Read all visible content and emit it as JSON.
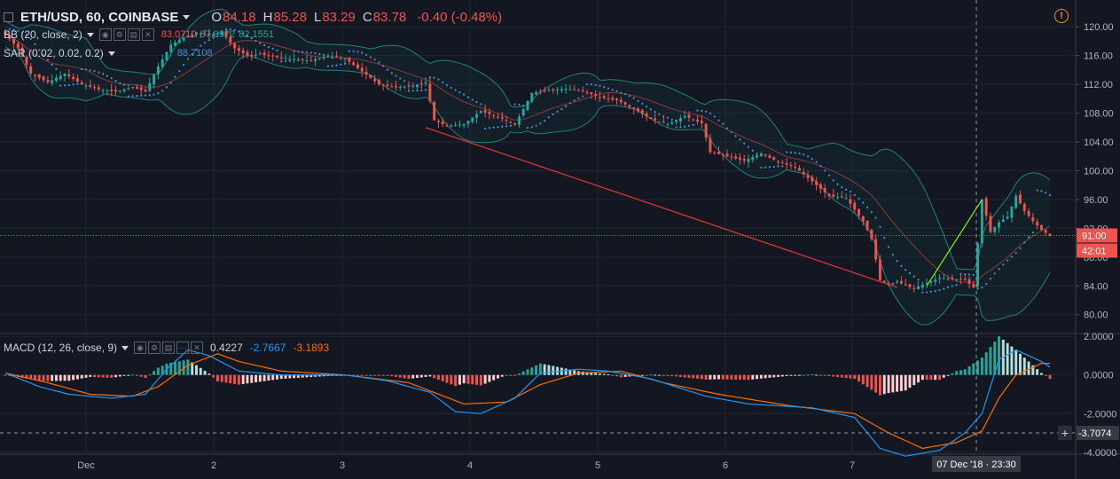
{
  "header": {
    "symbol": "ETH/USD, 60, COINBASE",
    "open_label": "O",
    "open": "84.18",
    "high_label": "H",
    "high": "85.28",
    "low_label": "L",
    "low": "83.29",
    "close_label": "C",
    "close": "83.78",
    "change": "-0.40 (-0.48%)",
    "alert_icon": "warning-icon"
  },
  "indicators": {
    "bb": {
      "name": "BB (20, close, 2)",
      "v1": "83.0710",
      "v2": "87.9972",
      "v3": "82.1551"
    },
    "sar": {
      "name": "SAR (0.02, 0.02, 0.2)",
      "v1": "88.7108"
    },
    "macd": {
      "name": "MACD (12, 26, close, 9)",
      "hist": "0.4227",
      "macd": "-2.7667",
      "signal": "-3.1893"
    }
  },
  "price_axis": {
    "ticks": [
      "120.00",
      "116.00",
      "112.00",
      "108.00",
      "104.00",
      "100.00",
      "96.00",
      "92.00",
      "88.00",
      "84.00",
      "80.00"
    ],
    "last_price_label": "91.00",
    "countdown_label": "42:01"
  },
  "macd_axis": {
    "ticks": [
      "2.0000",
      "0.0000",
      "-2.0000",
      "-4.0000"
    ],
    "crosshair_label": "-3.7074"
  },
  "time_axis": {
    "ticks": [
      "Dec",
      "2",
      "3",
      "4",
      "5",
      "6",
      "7"
    ],
    "crosshair_label": "07 Dec '18 · 23:30"
  },
  "colors": {
    "background": "#131722",
    "up": "#26a69a",
    "down": "#ef5350",
    "bb_band": "#26a69a",
    "bb_basis": "#8d3a3a",
    "sar": "#4a90d9",
    "macd_line": "#2196f3",
    "signal_line": "#ff6d00",
    "hist_up_strong": "#26a69a",
    "hist_up_weak": "#b2dfdb",
    "hist_down_strong": "#ef5350",
    "hist_down_weak": "#ffcdd2",
    "trendline_down": "#e53935",
    "trendline_up": "#76ff03"
  },
  "chart_data": [
    {
      "type": "candlestick",
      "title": "ETH/USD, 60, COINBASE",
      "ylim": [
        77.5,
        122.0
      ],
      "x_ticks": [
        "Dec",
        "2",
        "3",
        "4",
        "5",
        "6",
        "7"
      ],
      "anchors": [
        {
          "t": 0,
          "c": 119.0
        },
        {
          "t": 3,
          "c": 117.0
        },
        {
          "t": 6,
          "c": 113.5
        },
        {
          "t": 10,
          "c": 112.3
        },
        {
          "t": 14,
          "c": 113.5
        },
        {
          "t": 18,
          "c": 112.0
        },
        {
          "t": 22,
          "c": 111.3
        },
        {
          "t": 26,
          "c": 111.0
        },
        {
          "t": 30,
          "c": 111.6
        },
        {
          "t": 33,
          "c": 111.0
        },
        {
          "t": 36,
          "c": 114.5
        },
        {
          "t": 39,
          "c": 117.5
        },
        {
          "t": 42,
          "c": 118.5
        },
        {
          "t": 45,
          "c": 119.2
        },
        {
          "t": 48,
          "c": 118.8
        },
        {
          "t": 51,
          "c": 119.3
        },
        {
          "t": 54,
          "c": 117.0
        },
        {
          "t": 57,
          "c": 116.0
        },
        {
          "t": 60,
          "c": 116.2
        },
        {
          "t": 64,
          "c": 115.8
        },
        {
          "t": 68,
          "c": 115.5
        },
        {
          "t": 72,
          "c": 115.3
        },
        {
          "t": 76,
          "c": 116.0
        },
        {
          "t": 80,
          "c": 115.6
        },
        {
          "t": 84,
          "c": 113.8
        },
        {
          "t": 88,
          "c": 112.0
        },
        {
          "t": 92,
          "c": 111.6
        },
        {
          "t": 96,
          "c": 111.8
        },
        {
          "t": 99,
          "c": 112.3
        },
        {
          "t": 101,
          "c": 107.0
        },
        {
          "t": 104,
          "c": 106.2
        },
        {
          "t": 108,
          "c": 106.5
        },
        {
          "t": 112,
          "c": 108.3
        },
        {
          "t": 116,
          "c": 107.5
        },
        {
          "t": 120,
          "c": 106.4
        },
        {
          "t": 124,
          "c": 110.8
        },
        {
          "t": 128,
          "c": 111.2
        },
        {
          "t": 132,
          "c": 111.4
        },
        {
          "t": 136,
          "c": 111.1
        },
        {
          "t": 140,
          "c": 110.2
        },
        {
          "t": 144,
          "c": 109.8
        },
        {
          "t": 148,
          "c": 108.6
        },
        {
          "t": 152,
          "c": 107.2
        },
        {
          "t": 156,
          "c": 106.5
        },
        {
          "t": 160,
          "c": 107.6
        },
        {
          "t": 164,
          "c": 106.6
        },
        {
          "t": 166,
          "c": 102.6
        },
        {
          "t": 170,
          "c": 102.0
        },
        {
          "t": 174,
          "c": 101.4
        },
        {
          "t": 178,
          "c": 102.4
        },
        {
          "t": 182,
          "c": 101.2
        },
        {
          "t": 186,
          "c": 100.5
        },
        {
          "t": 190,
          "c": 98.5
        },
        {
          "t": 194,
          "c": 96.5
        },
        {
          "t": 198,
          "c": 96.2
        },
        {
          "t": 202,
          "c": 93.0
        },
        {
          "t": 204,
          "c": 90.5
        },
        {
          "t": 206,
          "c": 84.8
        },
        {
          "t": 208,
          "c": 84.2
        },
        {
          "t": 210,
          "c": 84.6
        },
        {
          "t": 214,
          "c": 83.6
        },
        {
          "t": 216,
          "c": 84.2
        },
        {
          "t": 220,
          "c": 85.1
        },
        {
          "t": 224,
          "c": 84.9
        },
        {
          "t": 226,
          "c": 84.8
        },
        {
          "t": 228,
          "c": 83.8
        },
        {
          "t": 230,
          "c": 96.0
        },
        {
          "t": 232,
          "c": 91.5
        },
        {
          "t": 234,
          "c": 92.8
        },
        {
          "t": 236,
          "c": 93.6
        },
        {
          "t": 238,
          "c": 96.5
        },
        {
          "t": 240,
          "c": 94.4
        },
        {
          "t": 242,
          "c": 93.0
        },
        {
          "t": 244,
          "c": 91.8
        },
        {
          "t": 246,
          "c": 91.0
        }
      ],
      "annotations": [
        {
          "label": "downtrend line",
          "from": {
            "t": 99,
            "c": 106.0
          },
          "to": {
            "t": 210,
            "c": 83.8
          }
        },
        {
          "label": "uptrend line",
          "from": {
            "t": 217,
            "c": 84.0
          },
          "to": {
            "t": 230,
            "c": 96.0
          }
        }
      ],
      "last_price": 91.0
    },
    {
      "type": "line",
      "title": "MACD (12, 26, close, 9)",
      "ylim": [
        -4.1,
        2.1
      ],
      "series": [
        {
          "name": "macd",
          "points": [
            [
              0,
              0.1
            ],
            [
              8,
              -0.6
            ],
            [
              15,
              -1.0
            ],
            [
              25,
              -1.2
            ],
            [
              33,
              -1.0
            ],
            [
              38,
              0.3
            ],
            [
              43,
              1.3
            ],
            [
              48,
              1.0
            ],
            [
              55,
              0.2
            ],
            [
              65,
              0.0
            ],
            [
              80,
              0.0
            ],
            [
              90,
              -0.3
            ],
            [
              100,
              -0.9
            ],
            [
              106,
              -1.9
            ],
            [
              112,
              -2.0
            ],
            [
              120,
              -1.2
            ],
            [
              126,
              0.1
            ],
            [
              135,
              0.3
            ],
            [
              142,
              0.2
            ],
            [
              152,
              -0.2
            ],
            [
              165,
              -1.1
            ],
            [
              175,
              -1.5
            ],
            [
              190,
              -1.7
            ],
            [
              200,
              -2.2
            ],
            [
              206,
              -3.8
            ],
            [
              212,
              -4.2
            ],
            [
              220,
              -3.9
            ],
            [
              226,
              -3.0
            ],
            [
              230,
              -2.0
            ],
            [
              234,
              0.8
            ],
            [
              238,
              1.3
            ],
            [
              244,
              0.7
            ],
            [
              246,
              0.4
            ]
          ]
        },
        {
          "name": "signal",
          "points": [
            [
              0,
              0.1
            ],
            [
              10,
              -0.4
            ],
            [
              20,
              -1.0
            ],
            [
              30,
              -1.1
            ],
            [
              36,
              -0.6
            ],
            [
              43,
              0.5
            ],
            [
              50,
              1.1
            ],
            [
              55,
              0.7
            ],
            [
              65,
              0.2
            ],
            [
              80,
              0.0
            ],
            [
              95,
              -0.4
            ],
            [
              108,
              -1.5
            ],
            [
              118,
              -1.4
            ],
            [
              126,
              -0.5
            ],
            [
              135,
              0.1
            ],
            [
              145,
              0.2
            ],
            [
              155,
              -0.4
            ],
            [
              168,
              -1.0
            ],
            [
              185,
              -1.6
            ],
            [
              200,
              -2.0
            ],
            [
              208,
              -3.0
            ],
            [
              216,
              -3.8
            ],
            [
              224,
              -3.5
            ],
            [
              230,
              -2.9
            ],
            [
              234,
              -1.2
            ],
            [
              238,
              0.0
            ],
            [
              244,
              0.6
            ],
            [
              246,
              0.6
            ]
          ]
        }
      ]
    }
  ]
}
